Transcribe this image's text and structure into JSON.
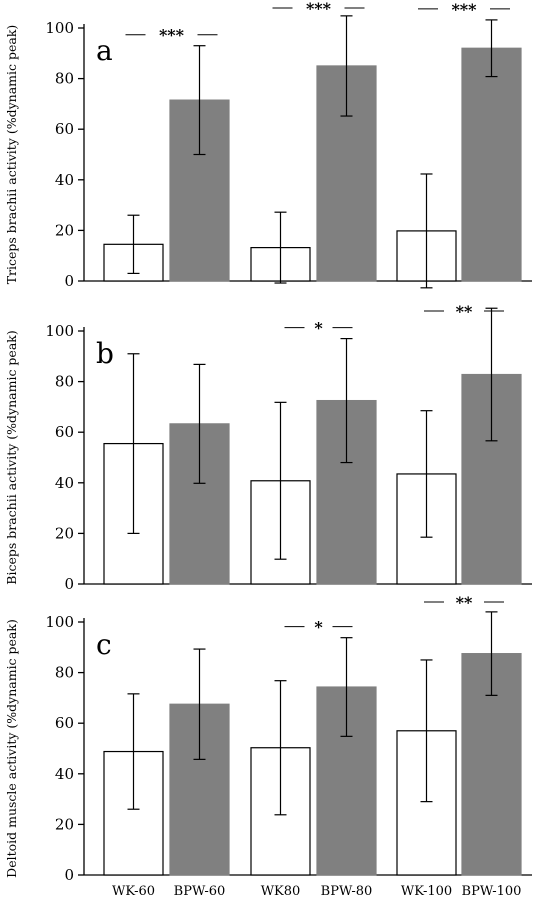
{
  "chart_data": [
    {
      "type": "bar",
      "panel_label": "a",
      "ylabel": "Triceps brachii activity (%dynamic peak)",
      "ylim": [
        0,
        100
      ],
      "yticks": [
        0,
        20,
        40,
        60,
        80,
        100
      ],
      "categories": [
        "WK-60",
        "BPW-60",
        "WK80",
        "BPW-80",
        "WK-100",
        "BPW-100"
      ],
      "values": [
        14.5,
        71.5,
        13.2,
        85,
        19.8,
        92
      ],
      "errors": [
        11.5,
        21.5,
        14,
        19.8,
        22.5,
        11.2
      ],
      "colors": [
        "#ffffff",
        "#808080",
        "#ffffff",
        "#808080",
        "#ffffff",
        "#808080"
      ],
      "significance": [
        "***",
        "***",
        "***"
      ]
    },
    {
      "type": "bar",
      "panel_label": "b",
      "ylabel": "Biceps brachii activity (%dynamic peak)",
      "ylim": [
        0,
        100
      ],
      "yticks": [
        0,
        20,
        40,
        60,
        80,
        100
      ],
      "categories": [
        "WK-60",
        "BPW-60",
        "WK80",
        "BPW-80",
        "WK-100",
        "BPW-100"
      ],
      "values": [
        55.5,
        63.3,
        40.8,
        72.5,
        43.5,
        82.8
      ],
      "errors": [
        35.5,
        23.5,
        31,
        24.5,
        25,
        26.2
      ],
      "colors": [
        "#ffffff",
        "#808080",
        "#ffffff",
        "#808080",
        "#ffffff",
        "#808080"
      ],
      "significance": [
        "",
        "*",
        "**"
      ]
    },
    {
      "type": "bar",
      "panel_label": "c",
      "ylabel": "Deltoid muscle activity (%dynamic peak)",
      "ylim": [
        0,
        100
      ],
      "yticks": [
        0,
        20,
        40,
        60,
        80,
        100
      ],
      "categories": [
        "WK-60",
        "BPW-60",
        "WK80",
        "BPW-80",
        "WK-100",
        "BPW-100"
      ],
      "values": [
        48.8,
        67.5,
        50.3,
        74.3,
        57,
        87.5
      ],
      "errors": [
        22.8,
        21.8,
        26.5,
        19.5,
        28,
        16.5
      ],
      "colors": [
        "#ffffff",
        "#808080",
        "#ffffff",
        "#808080",
        "#ffffff",
        "#808080"
      ],
      "significance": [
        "",
        "*",
        "**"
      ]
    }
  ],
  "x_axis_labels": [
    "WK-60",
    "BPW-60",
    "WK80",
    "BPW-80",
    "WK-100",
    "BPW-100"
  ]
}
